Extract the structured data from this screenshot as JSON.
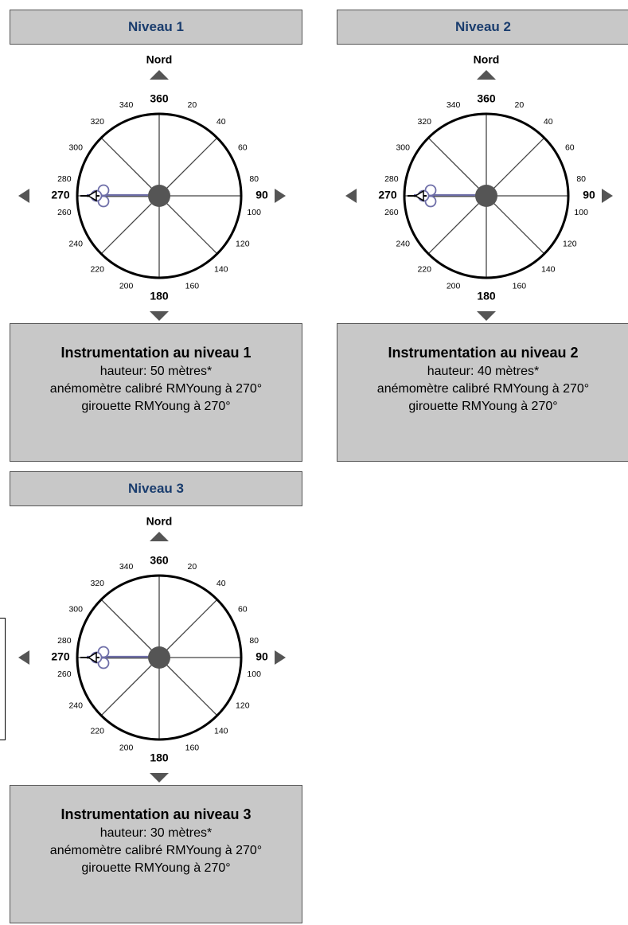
{
  "colors": {
    "panel_bg": "#c8c8c8",
    "header_text": "#1a3d6e",
    "hub": "#555555",
    "vane": "#6e6ea8"
  },
  "compass_labels": {
    "north": "Nord",
    "major": {
      "n": "360",
      "e": "90",
      "s": "180",
      "w": "270"
    },
    "minor": [
      "20",
      "40",
      "60",
      "80",
      "100",
      "120",
      "140",
      "160",
      "200",
      "220",
      "240",
      "260",
      "280",
      "300",
      "320",
      "340"
    ]
  },
  "panels": [
    {
      "header": "Niveau 1",
      "info_title": "Instrumentation au niveau 1",
      "line1": "hauteur: 50 mètres*",
      "line2": "anémomètre calibré RMYoung à 270°",
      "line3": "girouette RMYoung à 270°",
      "sensor_angle_deg": 270
    },
    {
      "header": "Niveau 2",
      "info_title": "Instrumentation au niveau 2",
      "line1": "hauteur: 40 mètres*",
      "line2": "anémomètre calibré RMYoung à 270°",
      "line3": "girouette RMYoung à 270°",
      "sensor_angle_deg": 270
    },
    {
      "header": "Niveau 3",
      "info_title": "Instrumentation au niveau 3",
      "line1": "hauteur: 30 mètres*",
      "line2": "anémomètre calibré RMYoung à 270°",
      "line3": "girouette RMYoung à 270°",
      "sensor_angle_deg": 270
    }
  ]
}
